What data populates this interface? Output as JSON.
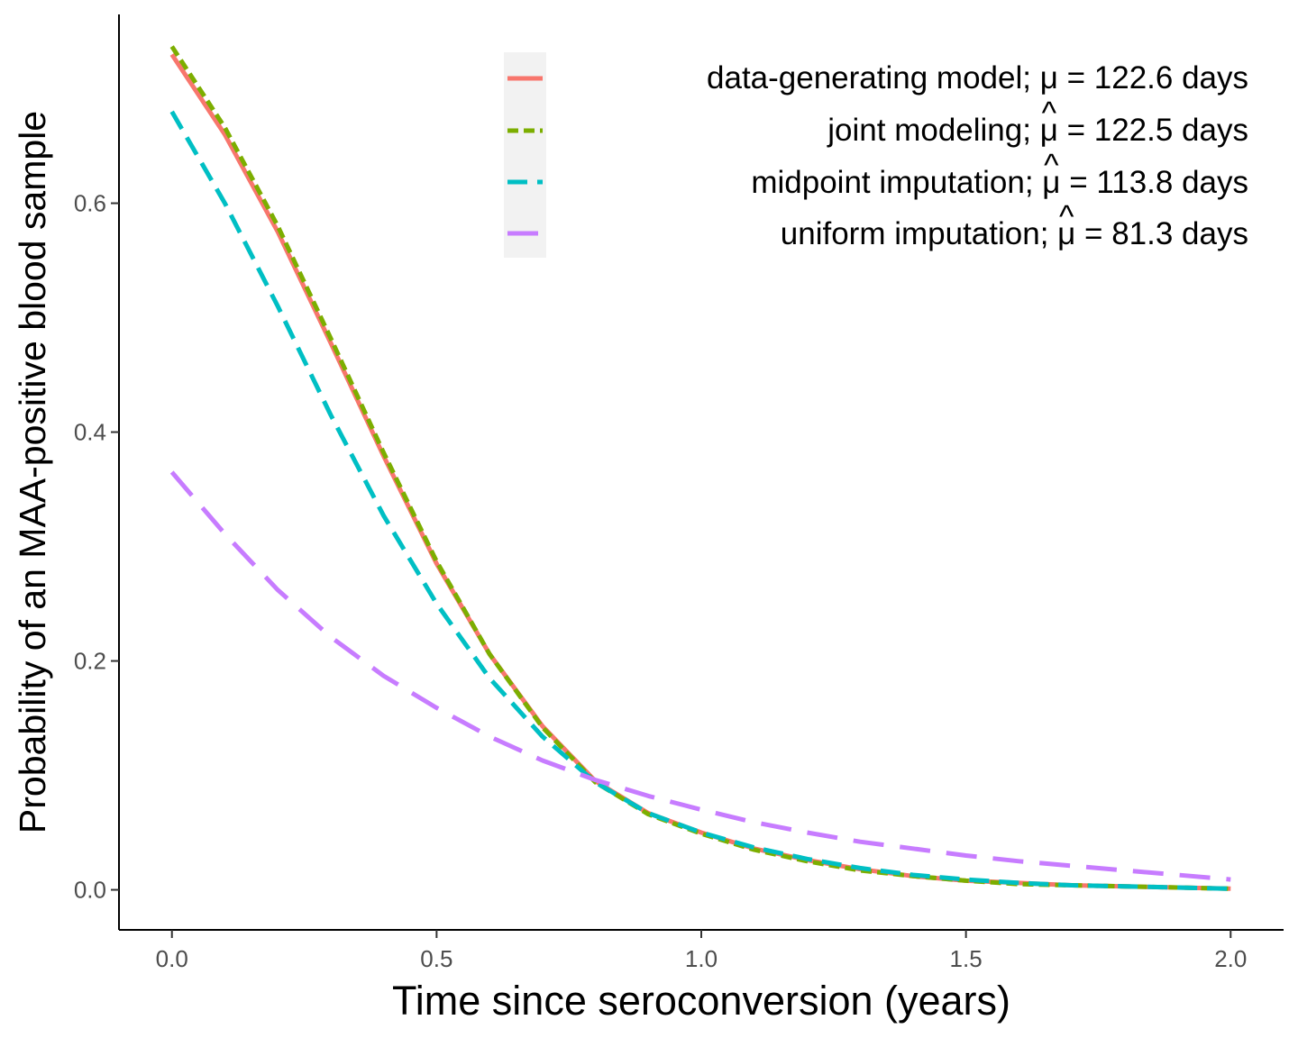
{
  "chart_data": {
    "type": "line",
    "title": "",
    "xlabel": "Time since seroconversion (years)",
    "ylabel": "Probability of an MAA-positive blood sample",
    "xlim": [
      -0.1,
      2.1
    ],
    "ylim": [
      -0.035,
      0.765
    ],
    "xticks": [
      0.0,
      0.5,
      1.0,
      1.5,
      2.0
    ],
    "xtick_labels": [
      "0.0",
      "0.5",
      "1.0",
      "1.5",
      "2.0"
    ],
    "yticks": [
      0.0,
      0.2,
      0.4,
      0.6
    ],
    "ytick_labels": [
      "0.0",
      "0.2",
      "0.4",
      "0.6"
    ],
    "grid": false,
    "legend_position": "top-right",
    "x": [
      0.0,
      0.1,
      0.2,
      0.3,
      0.4,
      0.5,
      0.6,
      0.7,
      0.8,
      0.9,
      1.0,
      1.1,
      1.2,
      1.3,
      1.4,
      1.5,
      1.6,
      1.7,
      1.8,
      1.9,
      2.0
    ],
    "series": [
      {
        "name": "data-generating model; μ = 122.6 days",
        "color": "#F8766D",
        "dash": "solid",
        "values": [
          0.73,
          0.66,
          0.575,
          0.478,
          0.379,
          0.285,
          0.206,
          0.143,
          0.095,
          0.067,
          0.05,
          0.036,
          0.026,
          0.018,
          0.012,
          0.008,
          0.006,
          0.004,
          0.003,
          0.002,
          0.001
        ]
      },
      {
        "name": "joint modeling; μ = 122.5 days",
        "mu_symbol": "μ",
        "mu_hat": "^",
        "label_before": "joint modeling; ",
        "label_after": " = 122.5 days",
        "color": "#7CAE00",
        "dash": "dashed-short",
        "values": [
          0.737,
          0.666,
          0.58,
          0.482,
          0.382,
          0.287,
          0.206,
          0.142,
          0.094,
          0.066,
          0.049,
          0.035,
          0.025,
          0.017,
          0.012,
          0.008,
          0.005,
          0.004,
          0.003,
          0.002,
          0.001
        ]
      },
      {
        "name": "midpoint imputation; μ = 113.8 days",
        "mu_symbol": "μ",
        "mu_hat": "^",
        "label_before": "midpoint imputation; ",
        "label_after": " = 113.8 days",
        "color": "#00BFC4",
        "dash": "dashed",
        "values": [
          0.68,
          0.6,
          0.51,
          0.415,
          0.327,
          0.25,
          0.185,
          0.134,
          0.094,
          0.067,
          0.05,
          0.037,
          0.027,
          0.019,
          0.013,
          0.009,
          0.006,
          0.004,
          0.003,
          0.002,
          0.001
        ]
      },
      {
        "name": "uniform imputation; μ = 81.3 days",
        "mu_symbol": "μ",
        "mu_hat": "^",
        "label_before": "uniform imputation; ",
        "label_after": " = 81.3 days",
        "color": "#C77CFF",
        "dash": "long-dash",
        "values": [
          0.365,
          0.311,
          0.262,
          0.221,
          0.187,
          0.159,
          0.134,
          0.113,
          0.096,
          0.082,
          0.07,
          0.059,
          0.05,
          0.042,
          0.036,
          0.03,
          0.025,
          0.021,
          0.017,
          0.013,
          0.009
        ]
      }
    ]
  }
}
